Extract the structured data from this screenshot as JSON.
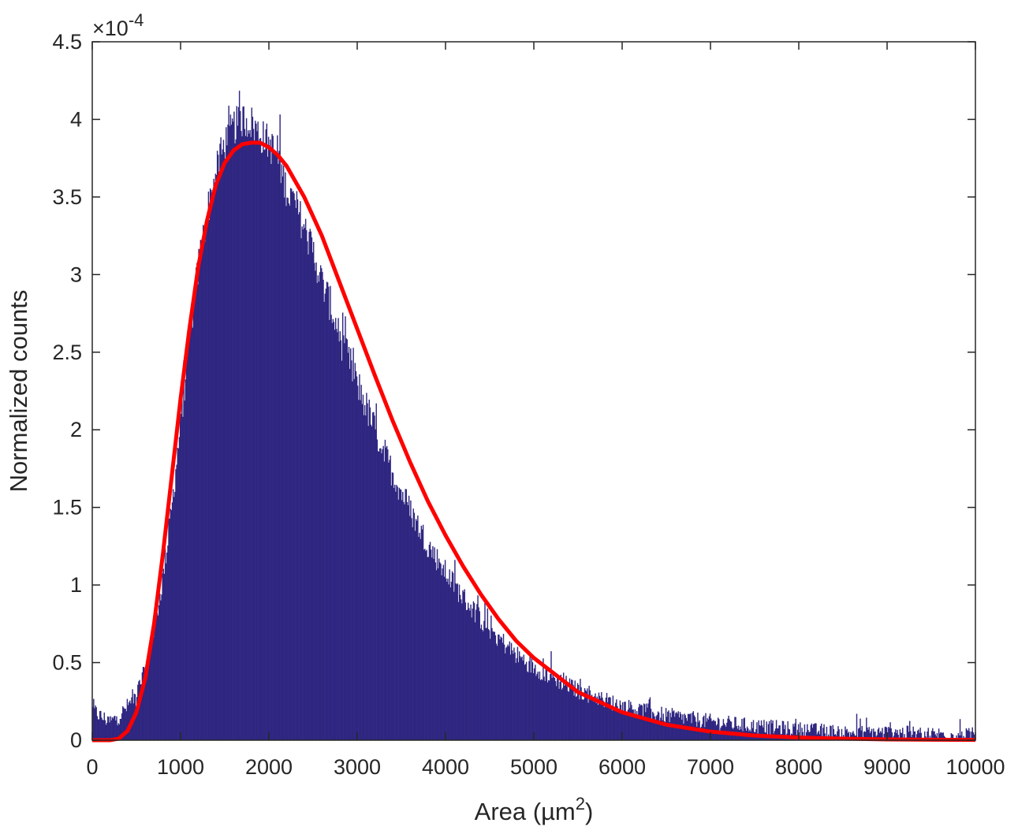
{
  "chart_data": {
    "type": "bar",
    "subtype": "histogram-with-fit",
    "xlabel": "Area (µm²)",
    "xlabel_base": "Area (µm",
    "xlabel_sup": "2",
    "xlabel_end": ")",
    "ylabel": "Normalized counts",
    "y_exponent_label": "×10",
    "y_exponent_power": "-4",
    "xlim": [
      0,
      10000
    ],
    "ylim": [
      0,
      4.5
    ],
    "x_ticks": [
      "0",
      "1000",
      "2000",
      "3000",
      "4000",
      "5000",
      "6000",
      "7000",
      "8000",
      "9000",
      "10000"
    ],
    "y_ticks": [
      "0",
      "0.5",
      "1",
      "1.5",
      "2",
      "2.5",
      "3",
      "3.5",
      "4",
      "4.5"
    ],
    "histogram": {
      "bin_width": 10,
      "color": "#2e2680",
      "envelope": {
        "x": [
          0,
          100,
          200,
          300,
          400,
          500,
          600,
          700,
          800,
          900,
          1000,
          1100,
          1200,
          1300,
          1400,
          1500,
          1600,
          1700,
          1800,
          1900,
          2000,
          2100,
          2200,
          2300,
          2400,
          2500,
          2600,
          2700,
          2800,
          2900,
          3000,
          3200,
          3400,
          3600,
          3800,
          4000,
          4200,
          4400,
          4600,
          4800,
          5000,
          5500,
          6000,
          6500,
          7000,
          7500,
          8000,
          8500,
          9000,
          9500,
          10000
        ],
        "y": [
          0.2,
          0.15,
          0.12,
          0.15,
          0.22,
          0.3,
          0.45,
          0.7,
          1.05,
          1.5,
          2.05,
          2.6,
          3.05,
          3.4,
          3.65,
          3.85,
          3.95,
          4.0,
          3.98,
          3.9,
          3.85,
          3.75,
          3.55,
          3.45,
          3.3,
          3.15,
          2.95,
          2.8,
          2.6,
          2.45,
          2.3,
          2.0,
          1.72,
          1.48,
          1.26,
          1.08,
          0.92,
          0.78,
          0.66,
          0.55,
          0.47,
          0.32,
          0.22,
          0.16,
          0.12,
          0.09,
          0.07,
          0.05,
          0.05,
          0.04,
          0.03
        ]
      }
    },
    "fit": {
      "color": "#ff0000",
      "x": [
        0,
        200,
        300,
        400,
        500,
        600,
        700,
        800,
        900,
        1000,
        1100,
        1200,
        1300,
        1400,
        1500,
        1600,
        1700,
        1800,
        1900,
        2000,
        2100,
        2200,
        2400,
        2600,
        2800,
        3000,
        3200,
        3400,
        3600,
        3800,
        4000,
        4200,
        4400,
        4600,
        4800,
        5000,
        5500,
        6000,
        6500,
        7000,
        7500,
        8000,
        8500,
        9000,
        9500,
        10000
      ],
      "y": [
        0,
        0,
        0.01,
        0.06,
        0.18,
        0.4,
        0.75,
        1.2,
        1.7,
        2.2,
        2.65,
        3.05,
        3.35,
        3.58,
        3.72,
        3.8,
        3.84,
        3.85,
        3.85,
        3.82,
        3.77,
        3.7,
        3.5,
        3.25,
        2.95,
        2.65,
        2.35,
        2.06,
        1.79,
        1.54,
        1.32,
        1.12,
        0.94,
        0.78,
        0.64,
        0.53,
        0.31,
        0.18,
        0.1,
        0.055,
        0.03,
        0.017,
        0.01,
        0.005,
        0.003,
        0.002
      ]
    }
  }
}
